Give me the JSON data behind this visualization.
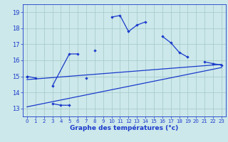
{
  "bg_color": "#cce8ea",
  "line_color": "#1a3acc",
  "grid_color": "#aacccc",
  "xlabel": "Graphe des températures (°c)",
  "xlim": [
    -0.5,
    23.5
  ],
  "ylim": [
    12.5,
    19.5
  ],
  "yticks": [
    13,
    14,
    15,
    16,
    17,
    18,
    19
  ],
  "xticks": [
    0,
    1,
    2,
    3,
    4,
    5,
    6,
    7,
    8,
    9,
    10,
    11,
    12,
    13,
    14,
    15,
    16,
    17,
    18,
    19,
    20,
    21,
    22,
    23
  ],
  "series": [
    {
      "x": [
        0,
        1,
        3,
        5,
        6,
        8,
        10,
        11,
        12,
        13,
        14,
        16,
        17,
        18,
        19,
        21,
        22,
        23
      ],
      "y": [
        15.0,
        14.9,
        14.4,
        16.4,
        16.4,
        16.6,
        18.7,
        18.8,
        17.8,
        18.2,
        18.4,
        17.5,
        17.1,
        16.5,
        16.2,
        15.9,
        15.8,
        15.7
      ],
      "segments": [
        [
          0,
          1
        ],
        [
          3,
          5,
          6
        ],
        [
          8
        ],
        [
          10,
          11,
          12,
          13,
          14
        ],
        [
          16,
          17,
          18,
          19
        ],
        [
          21,
          22,
          23
        ]
      ]
    },
    {
      "x": [
        0,
        3,
        4,
        5,
        7
      ],
      "y": [
        15.0,
        13.3,
        13.2,
        13.2,
        14.9
      ],
      "segments": [
        [
          0
        ],
        [
          3,
          4,
          5
        ],
        [
          7
        ]
      ]
    },
    {
      "x": [
        0,
        23
      ],
      "y": [
        14.8,
        15.75
      ]
    },
    {
      "x": [
        0,
        23
      ],
      "y": [
        13.1,
        15.55
      ]
    }
  ]
}
